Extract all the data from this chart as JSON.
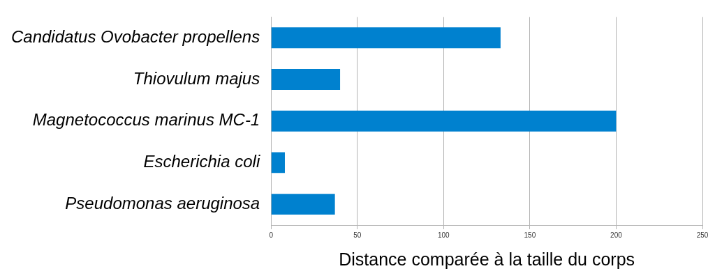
{
  "chart_data": {
    "type": "bar",
    "orientation": "horizontal",
    "xlabel": "Distance comparée à la taille du corps",
    "categories": [
      "Candidatus Ovobacter propellens",
      "Thiovulum majus",
      "Magnetococcus marinus MC-1",
      "Escherichia coli",
      "Pseudomonas aeruginosa"
    ],
    "values": [
      133,
      40,
      200,
      8,
      37
    ],
    "color": "#0081cf",
    "xlim": [
      0,
      250
    ],
    "xticks": [
      0,
      50,
      100,
      150,
      200,
      250
    ],
    "grid": "x",
    "legend": false
  }
}
